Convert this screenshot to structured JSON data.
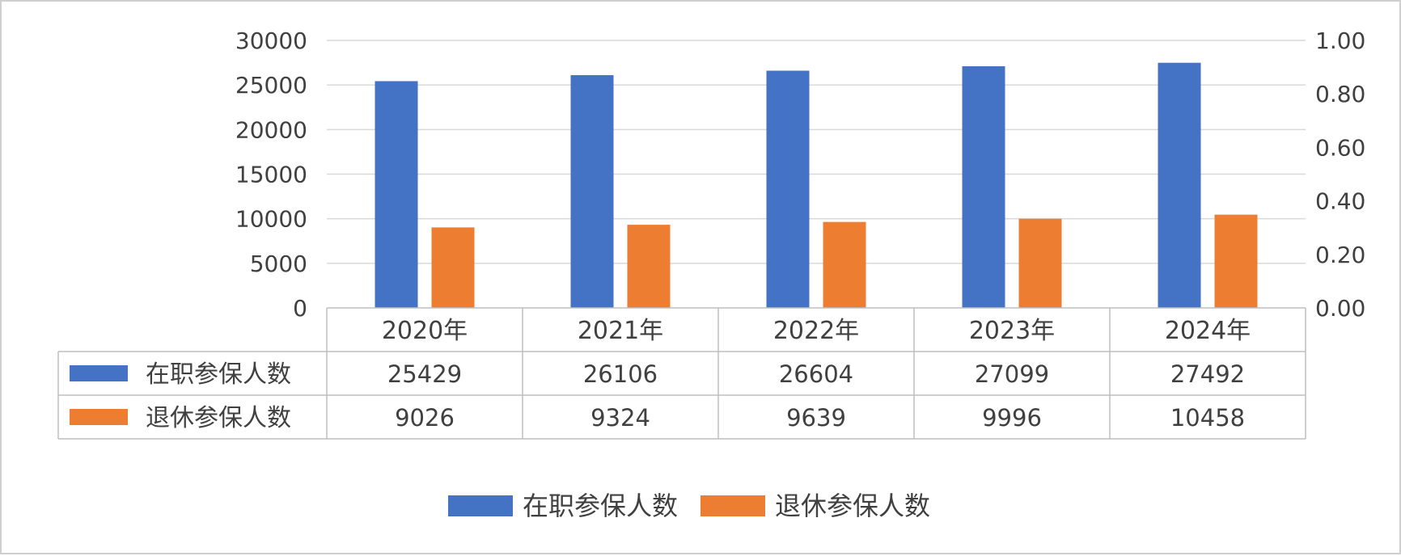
{
  "chart_data": {
    "type": "bar",
    "categories": [
      "2020年",
      "2021年",
      "2022年",
      "2023年",
      "2024年"
    ],
    "series": [
      {
        "name": "在职参保人数",
        "color": "#4472c4",
        "values": [
          25429,
          26106,
          26604,
          27099,
          27492
        ]
      },
      {
        "name": "退休参保人数",
        "color": "#ed7d31",
        "values": [
          9026,
          9324,
          9639,
          9996,
          10458
        ]
      }
    ],
    "ylim": [
      0,
      30000
    ],
    "y_ticks": [
      "0",
      "5000",
      "10000",
      "15000",
      "20000",
      "25000",
      "30000"
    ],
    "y2lim": [
      0,
      1
    ],
    "y2_ticks": [
      "0.00",
      "0.20",
      "0.40",
      "0.60",
      "0.80",
      "1.00"
    ],
    "grid": true,
    "data_table": true,
    "legend_position": "bottom"
  }
}
